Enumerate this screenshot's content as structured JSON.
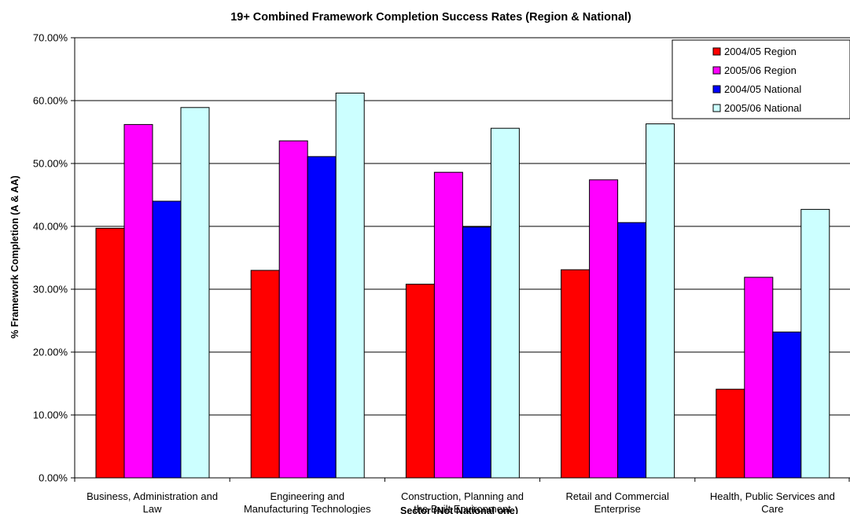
{
  "chart_data": {
    "type": "bar",
    "title": "19+ Combined Framework Completion Success Rates (Region & National)",
    "ylabel": "% Framework Completion (A & AA)",
    "xlabel": "Sector (Not National one)",
    "ylim": [
      0,
      0.7
    ],
    "yticks": [
      0,
      0.1,
      0.2,
      0.3,
      0.4,
      0.5,
      0.6,
      0.7
    ],
    "ytick_labels": [
      "0.00%",
      "10.00%",
      "20.00%",
      "30.00%",
      "40.00%",
      "50.00%",
      "60.00%",
      "70.00%"
    ],
    "grid": "horizontal",
    "legend_position": "top-right",
    "categories": [
      [
        "Business, Administration and",
        "Law"
      ],
      [
        "Engineering and",
        "Manufacturing Technologies"
      ],
      [
        "Construction, Planning and",
        "the Built Environment"
      ],
      [
        "Retail and Commercial",
        "Enterprise"
      ],
      [
        "Health, Public Services and",
        "Care"
      ]
    ],
    "series": [
      {
        "name": "2004/05 Region",
        "color": "#ff0000",
        "values": [
          0.397,
          0.33,
          0.308,
          0.331,
          0.141
        ]
      },
      {
        "name": "2005/06 Region",
        "color": "#ff00ff",
        "values": [
          0.562,
          0.536,
          0.486,
          0.474,
          0.319
        ]
      },
      {
        "name": "2004/05 National",
        "color": "#0000ff",
        "values": [
          0.44,
          0.511,
          0.399,
          0.406,
          0.232
        ]
      },
      {
        "name": "2005/06 National",
        "color": "#ccffff",
        "values": [
          0.589,
          0.612,
          0.556,
          0.563,
          0.427
        ]
      }
    ]
  }
}
